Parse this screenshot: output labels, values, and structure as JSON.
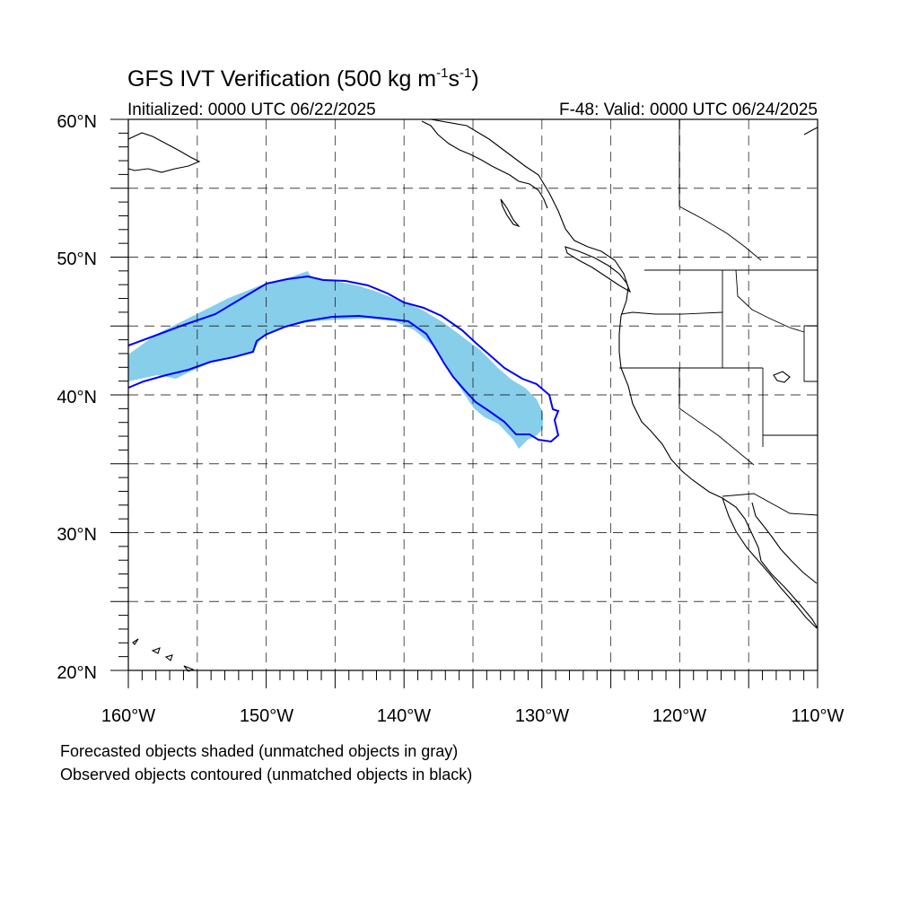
{
  "title": {
    "main": "GFS IVT Verification (500 kg m",
    "sup1": "-1",
    "mid": "s",
    "sup2": "-1",
    "end": ")"
  },
  "initialized": "Initialized: 0000 UTC 06/22/2025",
  "valid": "F-48: Valid: 0000 UTC 06/24/2025",
  "lat_labels": [
    "60°N",
    "50°N",
    "40°N",
    "30°N",
    "20°N"
  ],
  "lon_labels": [
    "160°W",
    "150°W",
    "140°W",
    "130°W",
    "120°W",
    "110°W"
  ],
  "notes": {
    "line1": "Forecasted objects shaded (unmatched objects in gray)",
    "line2": "Observed objects contoured (unmatched objects in black)"
  },
  "map": {
    "lon_range": [
      -160,
      -110
    ],
    "lat_range": [
      20,
      60
    ],
    "grid_lons": [
      -155,
      -150,
      -145,
      -140,
      -135,
      -130,
      -125,
      -120,
      -115
    ],
    "grid_lats": [
      25,
      30,
      35,
      40,
      45,
      50,
      55
    ]
  },
  "colors": {
    "forecast_fill": "#87ceeb",
    "observed_contour": "#0000ff",
    "coastline": "#000000"
  }
}
